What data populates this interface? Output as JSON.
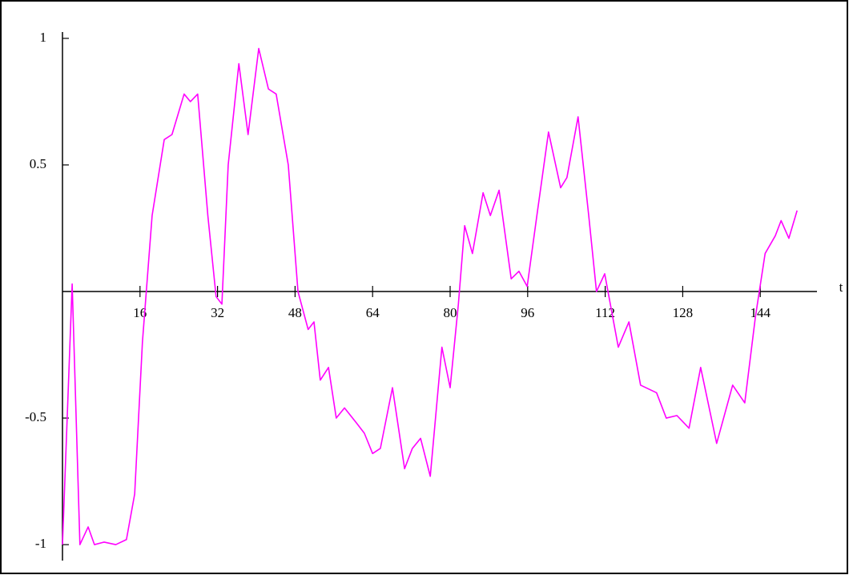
{
  "chart_data": {
    "type": "line",
    "x_label": "t",
    "x": [
      0,
      2,
      3.6,
      5.3,
      6.6,
      8.6,
      11,
      13.2,
      14.9,
      16.5,
      18.5,
      21,
      22.6,
      25.1,
      26.4,
      27.9,
      30,
      31.7,
      32.9,
      34.2,
      36.4,
      38.3,
      40.5,
      42.5,
      44.1,
      46.6,
      48.6,
      50.7,
      51.9,
      53.2,
      54.9,
      56.5,
      58.2,
      60.7,
      62.3,
      64,
      65.6,
      68.1,
      70.6,
      72.2,
      73.9,
      75.9,
      78.3,
      80,
      81.7,
      83,
      84.6,
      86.8,
      88.3,
      90.1,
      92.6,
      94.2,
      95.9,
      97.9,
      100.3,
      102.8,
      104.1,
      106.4,
      108.6,
      110.2,
      111.9,
      114.7,
      116.9,
      119.3,
      122.6,
      124.6,
      126.8,
      129.3,
      131.7,
      135,
      138.3,
      140.8,
      143,
      145,
      147.1,
      148.3,
      149.9,
      151.6
    ],
    "series": [
      {
        "color": "#ff00ff",
        "values": [
          -1,
          0.03,
          -1,
          -0.93,
          -1,
          -0.99,
          -1,
          -0.98,
          -0.8,
          -0.2,
          0.3,
          0.6,
          0.62,
          0.78,
          0.75,
          0.78,
          0.3,
          -0.02,
          -0.05,
          0.5,
          0.9,
          0.62,
          0.96,
          0.8,
          0.78,
          0.5,
          0,
          -0.15,
          -0.12,
          -0.35,
          -0.3,
          -0.5,
          -0.46,
          -0.52,
          -0.56,
          -0.64,
          -0.62,
          -0.38,
          -0.7,
          -0.62,
          -0.58,
          -0.73,
          -0.22,
          -0.38,
          -0.05,
          0.26,
          0.15,
          0.39,
          0.3,
          0.4,
          0.05,
          0.08,
          0.02,
          0.3,
          0.63,
          0.41,
          0.45,
          0.69,
          0.3,
          0,
          0.07,
          -0.22,
          -0.12,
          -0.37,
          -0.4,
          -0.5,
          -0.49,
          -0.54,
          -0.3,
          -0.6,
          -0.37,
          -0.44,
          -0.1,
          0.15,
          0.22,
          0.28,
          0.21,
          0.32
        ]
      }
    ],
    "xlim": [
      0,
      155.7
    ],
    "ylim": [
      -1.063,
      1.025
    ],
    "xticks": [
      16,
      32,
      48,
      64,
      80,
      96,
      112,
      128,
      144
    ],
    "yticks": [
      -1,
      -0.5,
      0.5,
      1
    ]
  }
}
